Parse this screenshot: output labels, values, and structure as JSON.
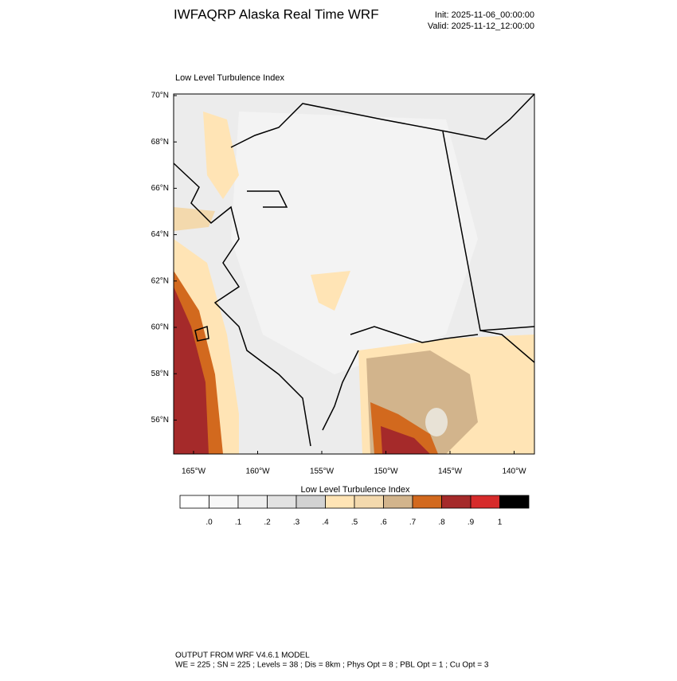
{
  "header": {
    "title": "IWFAQRP Alaska Real Time WRF",
    "init": "Init: 2025-11-06_00:00:00",
    "valid": "Valid: 2025-11-12_12:00:00"
  },
  "map": {
    "subtitle": "Low Level Turbulence Index",
    "lat_labels": [
      {
        "value": 70,
        "label": "70°N"
      },
      {
        "value": 68,
        "label": "68°N"
      },
      {
        "value": 66,
        "label": "66°N"
      },
      {
        "value": 64,
        "label": "64°N"
      },
      {
        "value": 62,
        "label": "62°N"
      },
      {
        "value": 60,
        "label": "60°N"
      },
      {
        "value": 58,
        "label": "58°N"
      },
      {
        "value": 56,
        "label": "56°N"
      }
    ],
    "lon_labels": [
      {
        "value": -165,
        "label": "165°W"
      },
      {
        "value": -160,
        "label": "160°W"
      },
      {
        "value": -155,
        "label": "155°W"
      },
      {
        "value": -150,
        "label": "150°W"
      },
      {
        "value": -145,
        "label": "145°W"
      },
      {
        "value": -140,
        "label": "140°W"
      }
    ]
  },
  "colorbar": {
    "title": "Low Level Turbulence Index",
    "colors": [
      "#ffffff",
      "#f8f8f8",
      "#efefef",
      "#e2e2e2",
      "#d2d2d2",
      "#ffe4b5",
      "#f3d9ad",
      "#d2b48c",
      "#d2691e",
      "#a52a2a",
      "#d62b2b",
      "#000000"
    ],
    "labels": [
      {
        "value": 0,
        "label": ".0"
      },
      {
        "value": 0.1,
        "label": ".1"
      },
      {
        "value": 0.2,
        "label": ".2"
      },
      {
        "value": 0.3,
        "label": ".3"
      },
      {
        "value": 0.4,
        "label": ".4"
      },
      {
        "value": 0.5,
        "label": ".5"
      },
      {
        "value": 0.6,
        "label": ".6"
      },
      {
        "value": 0.7,
        "label": ".7"
      },
      {
        "value": 0.8,
        "label": ".8"
      },
      {
        "value": 0.9,
        "label": ".9"
      },
      1
    ]
  },
  "footer": {
    "line1": "OUTPUT FROM WRF V4.6.1 MODEL",
    "line2": "WE = 225 ; SN = 225 ; Levels = 38 ; Dis = 8km ; Phys Opt = 8 ; PBL Opt = 1 ; Cu Opt = 3"
  }
}
